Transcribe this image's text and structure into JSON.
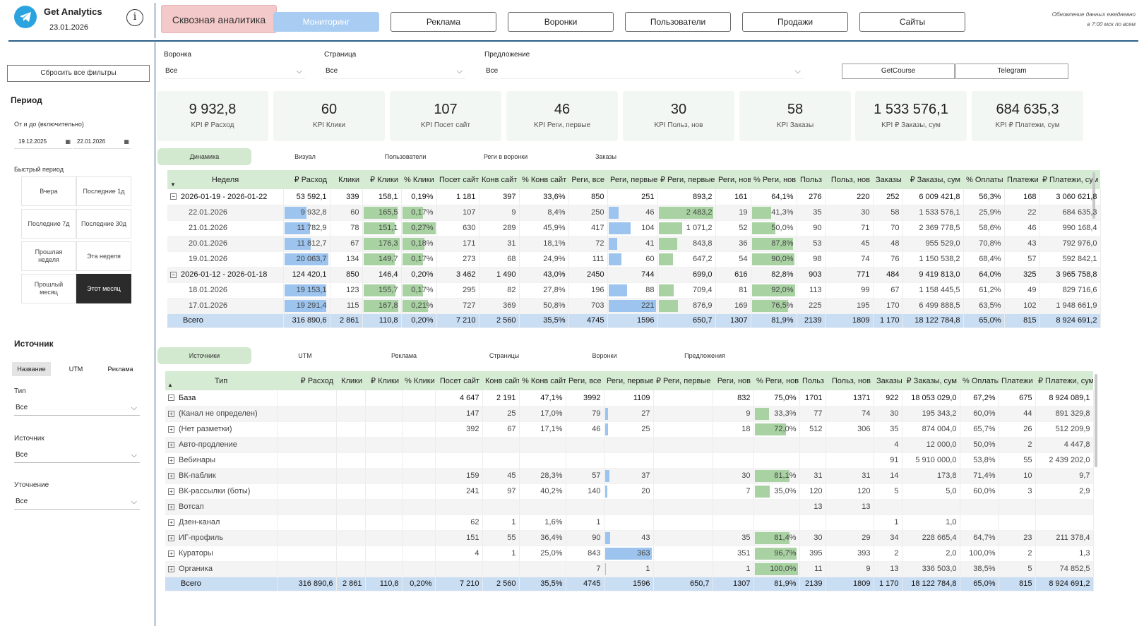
{
  "header": {
    "app_title": "Get Analytics",
    "date": "23.01.2026",
    "info_icon": "i",
    "main_tab": "Сквозная аналитика",
    "tabs": [
      "Мониторинг",
      "Реклама",
      "Воронки",
      "Пользователи",
      "Продажи",
      "Сайты"
    ],
    "active_tab": "Мониторинг",
    "update_note_1": "Обновление данных ежедневно",
    "update_note_2": "в 7:00 мск по всем"
  },
  "sidebar": {
    "reset_label": "Сбросить все фильтры",
    "period_title": "Период",
    "range_label": "От и до (включительно)",
    "date_from": "19.12.2025",
    "date_to": "22.01.2026",
    "quick_label": "Быстрый период",
    "quick": [
      {
        "label": "Вчера"
      },
      {
        "label": "Последние 1д"
      },
      {
        "label": "Последние 7д"
      },
      {
        "label": "Последние 30д"
      },
      {
        "label": "Прошлая неделя"
      },
      {
        "label": "Эта неделя"
      },
      {
        "label": "Прошлый месяц"
      },
      {
        "label": "Этот месяц"
      }
    ],
    "active_quick": "Этот месяц",
    "source_title": "Источник",
    "seg": [
      "Название",
      "UTM",
      "Реклама"
    ],
    "type_label": "Тип",
    "type_value": "Все",
    "source_label": "Источник",
    "source_value": "Все",
    "refine_label": "Уточнение",
    "refine_value": "Все"
  },
  "filters": {
    "funnel_label": "Воронка",
    "funnel_value": "Все",
    "page_label": "Страница",
    "page_value": "Все",
    "offer_label": "Предложение",
    "offer_value": "Все",
    "platforms": [
      "GetCourse",
      "Telegram"
    ]
  },
  "kpis": [
    {
      "value": "9 932,8",
      "label": "KPI ₽ Расход"
    },
    {
      "value": "60",
      "label": "KPI Клики"
    },
    {
      "value": "107",
      "label": "KPI Посет сайт"
    },
    {
      "value": "46",
      "label": "KPI Реги, первые"
    },
    {
      "value": "30",
      "label": "KPI Польз, нов"
    },
    {
      "value": "58",
      "label": "KPI Заказы"
    },
    {
      "value": "1 533 576,1",
      "label": "KPI ₽ Заказы, сум"
    },
    {
      "value": "684 635,3",
      "label": "KPI ₽ Платежи, сум"
    }
  ],
  "subtabs1": [
    "Динамика",
    "Визуал",
    "Пользователи",
    "Реги в воронки",
    "Заказы"
  ],
  "subtabs2": [
    "Источники",
    "UTM",
    "Реклама",
    "Страницы",
    "Воронки",
    "Предложения"
  ],
  "table1": {
    "columns": [
      "Неделя",
      "₽ Расход",
      "Клики",
      "₽ Клики",
      "% Клики",
      "Посет сайт",
      "Конв сайт",
      "% Конв сайт",
      "Реги, все",
      "Реги, первые",
      "₽ Реги, первые",
      "Реги, нов",
      "% Реги, нов",
      "Польз",
      "Польз, нов",
      "Заказы",
      "₽ Заказы, сум",
      "% Оплаты",
      "Платежи",
      "₽ Платежи, сум"
    ],
    "rows": [
      {
        "kind": "grp",
        "cells": [
          "2026-01-19 - 2026-01-22",
          "53 592,1",
          "339",
          "158,1",
          "0,19%",
          "1 181",
          "397",
          "33,6%",
          "850",
          "251",
          "893,2",
          "161",
          "64,1%",
          "276",
          "220",
          "252",
          "6 009 421,8",
          "56,3%",
          "168",
          "3 060 621,8"
        ]
      },
      {
        "kind": "sub",
        "cells": [
          "22.01.2026",
          "9 932,8",
          "60",
          "165,5",
          "0,17%",
          "107",
          "9",
          "8,4%",
          "250",
          "46",
          "2 483,2",
          "19",
          "41,3%",
          "35",
          "30",
          "58",
          "1 533 576,1",
          "25,9%",
          "22",
          "684 635,3"
        ]
      },
      {
        "kind": "sub",
        "cells": [
          "21.01.2026",
          "11 782,9",
          "78",
          "151,1",
          "0,27%",
          "630",
          "289",
          "45,9%",
          "417",
          "104",
          "1 071,2",
          "52",
          "50,0%",
          "90",
          "71",
          "70",
          "2 369 778,5",
          "58,6%",
          "46",
          "990 168,4"
        ]
      },
      {
        "kind": "sub",
        "cells": [
          "20.01.2026",
          "11 812,7",
          "67",
          "176,3",
          "0,18%",
          "171",
          "31",
          "18,1%",
          "72",
          "41",
          "843,8",
          "36",
          "87,8%",
          "53",
          "45",
          "48",
          "955 529,0",
          "70,8%",
          "43",
          "792 976,0"
        ]
      },
      {
        "kind": "sub",
        "cells": [
          "19.01.2026",
          "20 063,7",
          "134",
          "149,7",
          "0,17%",
          "273",
          "68",
          "24,9%",
          "111",
          "60",
          "647,2",
          "54",
          "90,0%",
          "98",
          "74",
          "76",
          "1 150 538,2",
          "68,4%",
          "57",
          "592 842,1"
        ]
      },
      {
        "kind": "grp",
        "cells": [
          "2026-01-12 - 2026-01-18",
          "124 420,1",
          "850",
          "146,4",
          "0,20%",
          "3 462",
          "1 490",
          "43,0%",
          "2450",
          "744",
          "699,0",
          "616",
          "82,8%",
          "903",
          "771",
          "484",
          "9 419 813,0",
          "64,0%",
          "325",
          "3 965 758,8"
        ]
      },
      {
        "kind": "sub",
        "cells": [
          "18.01.2026",
          "19 153,1",
          "123",
          "155,7",
          "0,17%",
          "295",
          "82",
          "27,8%",
          "196",
          "88",
          "709,4",
          "81",
          "92,0%",
          "113",
          "99",
          "67",
          "1 158 445,5",
          "61,2%",
          "49",
          "829 716,6"
        ]
      },
      {
        "kind": "sub",
        "cells": [
          "17.01.2026",
          "19 291,4",
          "115",
          "167,8",
          "0,21%",
          "727",
          "369",
          "50,8%",
          "703",
          "221",
          "876,9",
          "169",
          "76,5%",
          "225",
          "195",
          "170",
          "6 499 888,5",
          "63,5%",
          "102",
          "1 948 661,9"
        ]
      }
    ],
    "total": [
      "Всего",
      "316 890,6",
      "2 861",
      "110,8",
      "0,20%",
      "7 210",
      "2 560",
      "35,5%",
      "4745",
      "1596",
      "650,7",
      "1307",
      "81,9%",
      "2139",
      "1809",
      "1 170",
      "18 122 784,8",
      "65,0%",
      "815",
      "8 924 691,2"
    ]
  },
  "table2": {
    "columns": [
      "Тип",
      "₽ Расход",
      "Клики",
      "₽ Клики",
      "% Клики",
      "Посет сайт",
      "Конв сайт",
      "% Конв сайт",
      "Реги, все",
      "Реги, первые",
      "₽ Реги, первые",
      "Реги, нов",
      "% Реги, нов",
      "Польз",
      "Польз, нов",
      "Заказы",
      "₽ Заказы, сум",
      "% Оплаты",
      "Платежи",
      "₽ Платежи, сум"
    ],
    "rows": [
      {
        "kind": "grp",
        "pm": "−",
        "cells": [
          "База",
          "",
          "",
          "",
          "",
          "4 647",
          "2 191",
          "47,1%",
          "3992",
          "1109",
          "",
          "832",
          "75,0%",
          "1701",
          "1371",
          "922",
          "18 053 029,0",
          "67,2%",
          "675",
          "8 924 089,1"
        ]
      },
      {
        "kind": "sub",
        "pm": "+",
        "cells": [
          "(Канал не определен)",
          "",
          "",
          "",
          "",
          "147",
          "25",
          "17,0%",
          "79",
          "27",
          "",
          "9",
          "33,3%",
          "77",
          "74",
          "30",
          "195 343,2",
          "60,0%",
          "44",
          "891 329,8"
        ]
      },
      {
        "kind": "sub",
        "pm": "+",
        "cells": [
          "(Нет разметки)",
          "",
          "",
          "",
          "",
          "392",
          "67",
          "17,1%",
          "46",
          "25",
          "",
          "18",
          "72,0%",
          "512",
          "306",
          "35",
          "874 004,0",
          "65,7%",
          "26",
          "512 209,9"
        ]
      },
      {
        "kind": "sub",
        "pm": "+",
        "cells": [
          "Авто-продление",
          "",
          "",
          "",
          "",
          "",
          "",
          "",
          "",
          "",
          "",
          "",
          "",
          "",
          "",
          "4",
          "12 000,0",
          "50,0%",
          "2",
          "4 447,8"
        ]
      },
      {
        "kind": "sub",
        "pm": "+",
        "cells": [
          "Вебинары",
          "",
          "",
          "",
          "",
          "",
          "",
          "",
          "",
          "",
          "",
          "",
          "",
          "",
          "",
          "91",
          "5 910 000,0",
          "53,8%",
          "55",
          "2 439 202,0"
        ]
      },
      {
        "kind": "sub",
        "pm": "+",
        "cells": [
          "ВК-паблик",
          "",
          "",
          "",
          "",
          "159",
          "45",
          "28,3%",
          "57",
          "37",
          "",
          "30",
          "81,1%",
          "31",
          "31",
          "14",
          "173,8",
          "71,4%",
          "10",
          "9,7"
        ]
      },
      {
        "kind": "sub",
        "pm": "+",
        "cells": [
          "ВК-рассылки (боты)",
          "",
          "",
          "",
          "",
          "241",
          "97",
          "40,2%",
          "140",
          "20",
          "",
          "7",
          "35,0%",
          "120",
          "120",
          "5",
          "5,0",
          "60,0%",
          "3",
          "2,9"
        ]
      },
      {
        "kind": "sub",
        "pm": "+",
        "cells": [
          "Вотсап",
          "",
          "",
          "",
          "",
          "",
          "",
          "",
          "",
          "",
          "",
          "",
          "",
          "13",
          "13",
          "",
          "",
          "",
          "",
          ""
        ]
      },
      {
        "kind": "sub",
        "pm": "+",
        "cells": [
          "Дзен-канал",
          "",
          "",
          "",
          "",
          "62",
          "1",
          "1,6%",
          "1",
          "",
          "",
          "",
          "",
          "",
          "",
          "1",
          "1,0",
          "",
          "",
          ""
        ]
      },
      {
        "kind": "sub",
        "pm": "+",
        "cells": [
          "ИГ-профиль",
          "",
          "",
          "",
          "",
          "151",
          "55",
          "36,4%",
          "90",
          "43",
          "",
          "35",
          "81,4%",
          "30",
          "29",
          "34",
          "228 665,4",
          "64,7%",
          "23",
          "211 378,4"
        ]
      },
      {
        "kind": "sub",
        "pm": "+",
        "cells": [
          "Кураторы",
          "",
          "",
          "",
          "",
          "4",
          "1",
          "25,0%",
          "843",
          "363",
          "",
          "351",
          "96,7%",
          "395",
          "393",
          "2",
          "2,0",
          "100,0%",
          "2",
          "1,3"
        ]
      },
      {
        "kind": "sub",
        "pm": "+",
        "cells": [
          "Органика",
          "",
          "",
          "",
          "",
          "",
          "",
          "",
          "7",
          "1",
          "",
          "1",
          "100,0%",
          "11",
          "9",
          "13",
          "336 503,0",
          "38,5%",
          "5",
          "74 852,5"
        ]
      }
    ],
    "total": [
      "Всего",
      "316 890,6",
      "2 861",
      "110,8",
      "0,20%",
      "7 210",
      "2 560",
      "35,5%",
      "4745",
      "1596",
      "650,7",
      "1307",
      "81,9%",
      "2139",
      "1809",
      "1 170",
      "18 122 784,8",
      "65,0%",
      "815",
      "8 924 691,2"
    ]
  },
  "colors": {
    "accent_blue": "#2b5f88",
    "main_tab_bg": "#f3c9c9",
    "active_tab_bg": "#a9cdf2",
    "header_green": "#d6ebd3",
    "total_blue": "#c9ddf3",
    "bar_blue": "#9cc4ee",
    "bar_green": "#a9d2a3"
  },
  "icons": {
    "logo": "telegram-logo-icon",
    "info": "info-icon",
    "calendar": "calendar-icon",
    "chevron": "chevron-down-icon",
    "expand": "plus-box-icon",
    "collapse": "minus-box-icon"
  }
}
